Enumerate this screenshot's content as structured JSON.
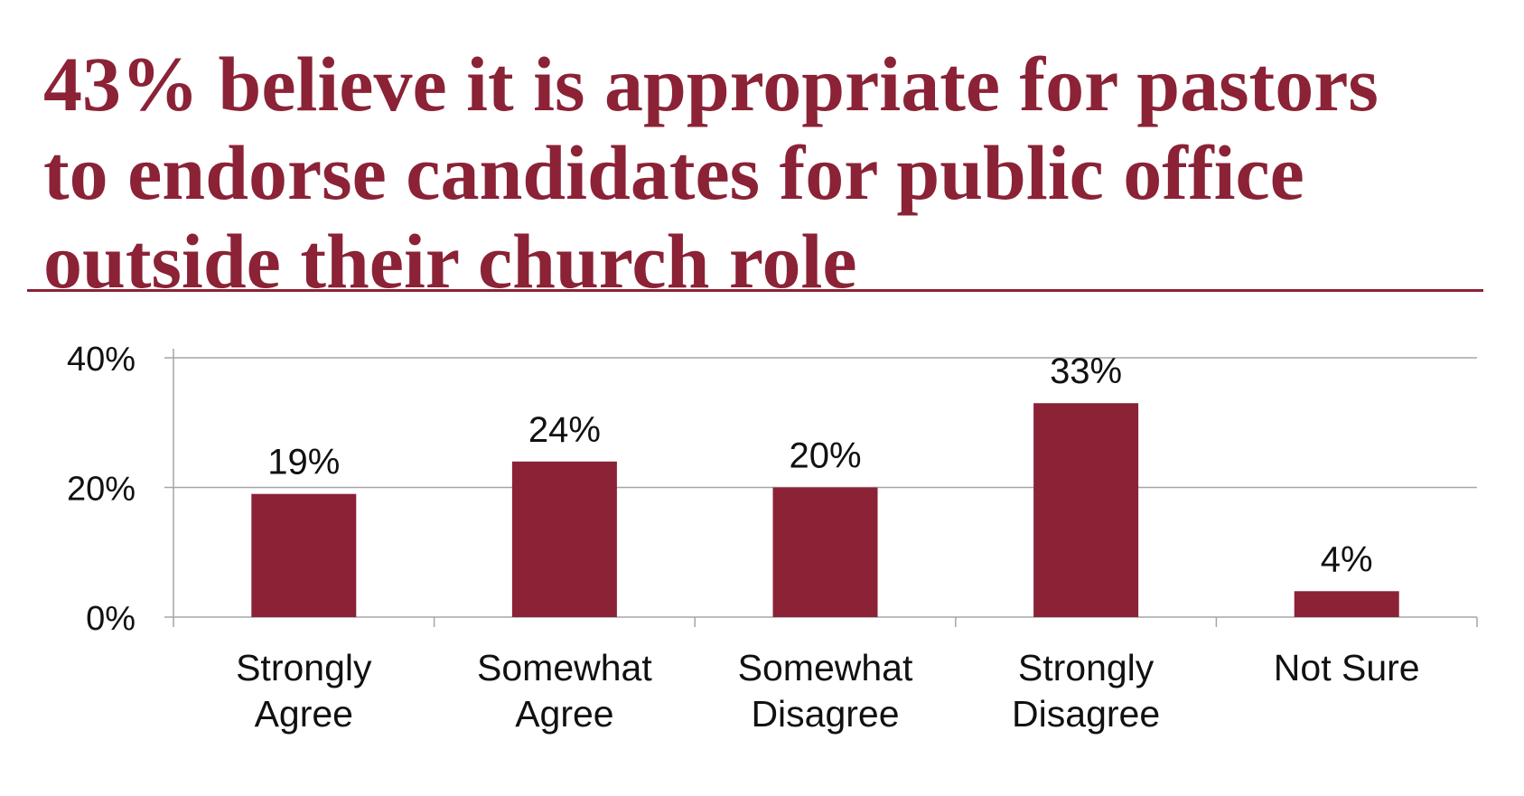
{
  "colors": {
    "accent": "#8b2236",
    "grid": "#a6a6a6",
    "text": "#111111"
  },
  "title_lines": [
    "43% believe it is appropriate for pastors",
    "to endorse candidates for public office",
    "outside their church role"
  ],
  "chart_data": {
    "type": "bar",
    "title": "43% believe it is appropriate for pastors to endorse candidates for public office outside their church role",
    "categories": [
      [
        "Strongly",
        "Agree"
      ],
      [
        "Somewhat",
        "Agree"
      ],
      [
        "Somewhat",
        "Disagree"
      ],
      [
        "Strongly",
        "Disagree"
      ],
      [
        "Not Sure"
      ]
    ],
    "values": [
      19,
      24,
      20,
      33,
      4
    ],
    "value_labels": [
      "19%",
      "24%",
      "20%",
      "33%",
      "4%"
    ],
    "ylim": [
      0,
      40
    ],
    "yticks": [
      0,
      20,
      40
    ],
    "ytick_labels": [
      "0%",
      "20%",
      "40%"
    ],
    "xlabel": "",
    "ylabel": "",
    "grid": true,
    "legend": "none"
  }
}
